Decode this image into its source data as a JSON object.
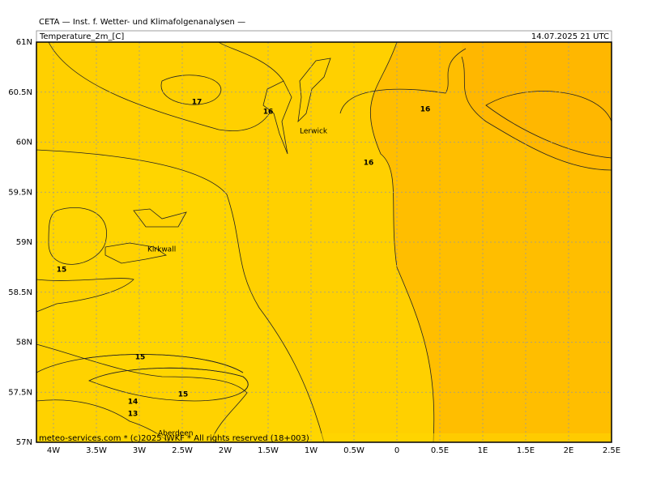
{
  "header": {
    "title": "CETA — Inst. f. Wetter- und Klimafolgenanalysen —",
    "variable": "Temperature_2m_[C]",
    "valid_time": "14.07.2025 21 UTC"
  },
  "axes": {
    "x_labels": [
      "4W",
      "3.5W",
      "3W",
      "2.5W",
      "2W",
      "1.5W",
      "1W",
      "0.5W",
      "0",
      "0.5E",
      "1E",
      "1.5E",
      "2E",
      "2.5E"
    ],
    "y_labels": [
      "61N",
      "60.5N",
      "60N",
      "59.5N",
      "59N",
      "58.5N",
      "58N",
      "57.5N",
      "57N"
    ]
  },
  "contour_labels": [
    "17",
    "16",
    "16",
    "16",
    "15",
    "15",
    "15",
    "14",
    "13"
  ],
  "places": [
    "Lerwick",
    "Kirkwall",
    "Aberdeen"
  ],
  "footer": "meteo-services.com * (c)2025 IWKF * All rights reserved (18+003)"
}
